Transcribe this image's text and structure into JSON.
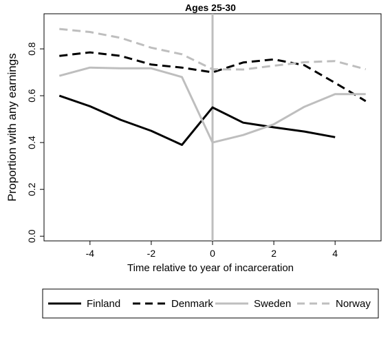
{
  "chart_data": {
    "type": "line",
    "title": "Ages 25-30",
    "xlabel": "Time relative to year of incarceration",
    "ylabel": "Proportion with any earnings",
    "xlim": [
      -5.5,
      5.5
    ],
    "ylim": [
      -0.02,
      0.95
    ],
    "xticks": [
      -4,
      -2,
      0,
      2,
      4
    ],
    "xtick_labels": [
      "-4",
      "-2",
      "0",
      "2",
      "4"
    ],
    "yticks": [
      0,
      0.2,
      0.4,
      0.6,
      0.8
    ],
    "ytick_labels": [
      "0.0",
      "0.2",
      "0.4",
      "0.6",
      "0.8"
    ],
    "reference_line_x": 0,
    "grid": false,
    "legend_position": "bottom",
    "series": [
      {
        "name": "Finland",
        "color": "#000000",
        "style": "solid",
        "x": [
          -5,
          -4,
          -3,
          -2,
          -1,
          0,
          1,
          2,
          3,
          4
        ],
        "y": [
          0.6,
          0.555,
          0.497,
          0.45,
          0.39,
          0.55,
          0.485,
          0.465,
          0.447,
          0.423
        ]
      },
      {
        "name": "Denmark",
        "color": "#000000",
        "style": "dashed",
        "x": [
          -5,
          -4,
          -3,
          -2,
          -1,
          0,
          1,
          2,
          3,
          4,
          5
        ],
        "y": [
          0.77,
          0.785,
          0.77,
          0.733,
          0.72,
          0.7,
          0.742,
          0.755,
          0.73,
          0.655,
          0.577
        ]
      },
      {
        "name": "Sweden",
        "color": "#bebebe",
        "style": "solid",
        "x": [
          -5,
          -4,
          -3,
          -2,
          -1,
          0,
          1,
          2,
          3,
          4,
          5
        ],
        "y": [
          0.685,
          0.72,
          0.717,
          0.717,
          0.68,
          0.4,
          0.432,
          0.478,
          0.553,
          0.607,
          0.607
        ]
      },
      {
        "name": "Norway",
        "color": "#bebebe",
        "style": "dashed",
        "x": [
          -5,
          -4,
          -3,
          -2,
          -1,
          0,
          1,
          2,
          3,
          4,
          5
        ],
        "y": [
          0.885,
          0.872,
          0.847,
          0.805,
          0.777,
          0.713,
          0.712,
          0.728,
          0.743,
          0.748,
          0.713
        ]
      }
    ]
  }
}
